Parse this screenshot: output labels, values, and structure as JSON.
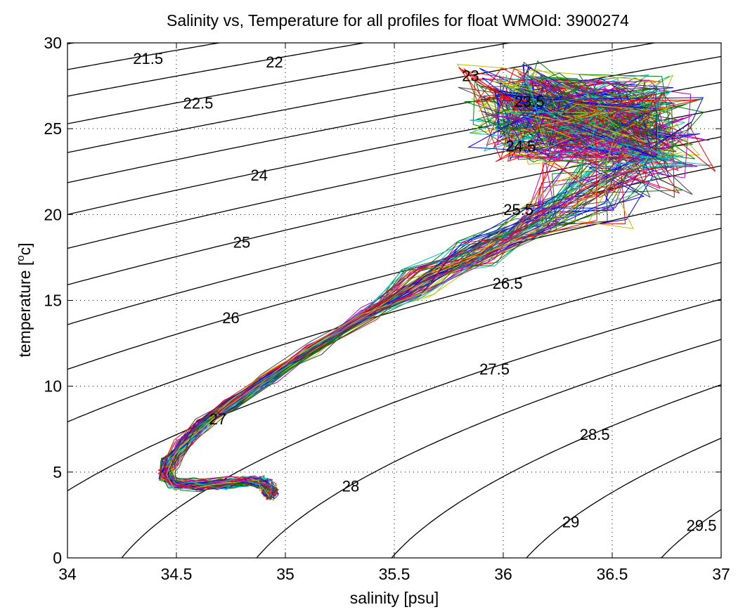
{
  "chart_data": {
    "type": "line",
    "title": "Salinity vs, Temperature for all profiles for float WMOId: 3900274",
    "xlabel": "salinity [psu]",
    "ylabel_main": "temperature [",
    "ylabel_sup": "o",
    "ylabel_tail": "c]",
    "xlim": [
      34,
      37
    ],
    "ylim": [
      0,
      30
    ],
    "xticks": [
      34,
      34.5,
      35,
      35.5,
      36,
      36.5,
      37
    ],
    "xtick_labels": [
      "34",
      "34.5",
      "35",
      "35.5",
      "36",
      "36.5",
      "37"
    ],
    "yticks": [
      0,
      5,
      10,
      15,
      20,
      25,
      30
    ],
    "ytick_labels": [
      "0",
      "5",
      "10",
      "15",
      "20",
      "25",
      "30"
    ],
    "grid": "dotted",
    "contour_color": "#000000",
    "density_contours": [
      {
        "label": "21.5",
        "sigma": 21.5,
        "label_at": [
          34.37,
          29.1
        ]
      },
      {
        "label": "22",
        "sigma": 22,
        "label_at": [
          34.95,
          28.9
        ]
      },
      {
        "label": "22.5",
        "sigma": 22.5,
        "label_at": [
          34.6,
          26.5
        ]
      },
      {
        "label": "23",
        "sigma": 23,
        "label_at": [
          35.85,
          28.1
        ]
      },
      {
        "label": "23.5",
        "sigma": 23.5,
        "label_at": [
          36.12,
          26.6
        ]
      },
      {
        "label": "24",
        "sigma": 24,
        "label_at": [
          34.88,
          22.3
        ]
      },
      {
        "label": "24.5",
        "sigma": 24.5,
        "label_at": [
          36.08,
          24.0
        ]
      },
      {
        "label": "25",
        "sigma": 25,
        "label_at": [
          34.8,
          18.4
        ]
      },
      {
        "label": "25.5",
        "sigma": 25.5,
        "label_at": [
          36.07,
          20.3
        ]
      },
      {
        "label": "26",
        "sigma": 26,
        "label_at": [
          34.75,
          14.0
        ]
      },
      {
        "label": "26.5",
        "sigma": 26.5,
        "label_at": [
          36.02,
          16.0
        ]
      },
      {
        "label": "27",
        "sigma": 27,
        "label_at": [
          34.69,
          8.1
        ]
      },
      {
        "label": "27.5",
        "sigma": 27.5,
        "label_at": [
          35.96,
          11.0
        ]
      },
      {
        "label": "28",
        "sigma": 28,
        "label_at": [
          35.3,
          4.2
        ]
      },
      {
        "label": "28.5",
        "sigma": 28.5,
        "label_at": [
          36.42,
          7.2
        ]
      },
      {
        "label": "29",
        "sigma": 29,
        "label_at": [
          36.31,
          2.1
        ]
      },
      {
        "label": "29.5",
        "sigma": 29.5,
        "label_at": [
          36.91,
          1.9
        ]
      },
      {
        "sigma": 20.5
      },
      {
        "sigma": 21
      },
      {
        "sigma": 30
      },
      {
        "sigma": 30.5
      }
    ],
    "profile_colors": [
      "#0000ff",
      "#008000",
      "#ff0000",
      "#00bfbf",
      "#bf00bf",
      "#bfbf00",
      "#404040"
    ],
    "profile_count": 70,
    "mean_profile": {
      "s": [
        34.93,
        34.93,
        34.92,
        34.89,
        34.82,
        34.72,
        34.6,
        34.5,
        34.45,
        34.47,
        34.53,
        34.62,
        34.75,
        34.92,
        35.13,
        35.38,
        35.62,
        35.88,
        36.15,
        36.42,
        36.62,
        36.72,
        36.35,
        36.1,
        36.05
      ],
      "t": [
        3.5,
        3.9,
        4.2,
        4.4,
        4.45,
        4.35,
        4.25,
        4.3,
        4.8,
        5.6,
        6.6,
        7.8,
        9.0,
        10.5,
        12.2,
        14.2,
        16.1,
        17.8,
        19.6,
        21.7,
        23.2,
        24.4,
        25.3,
        25.9,
        26.4
      ]
    }
  }
}
